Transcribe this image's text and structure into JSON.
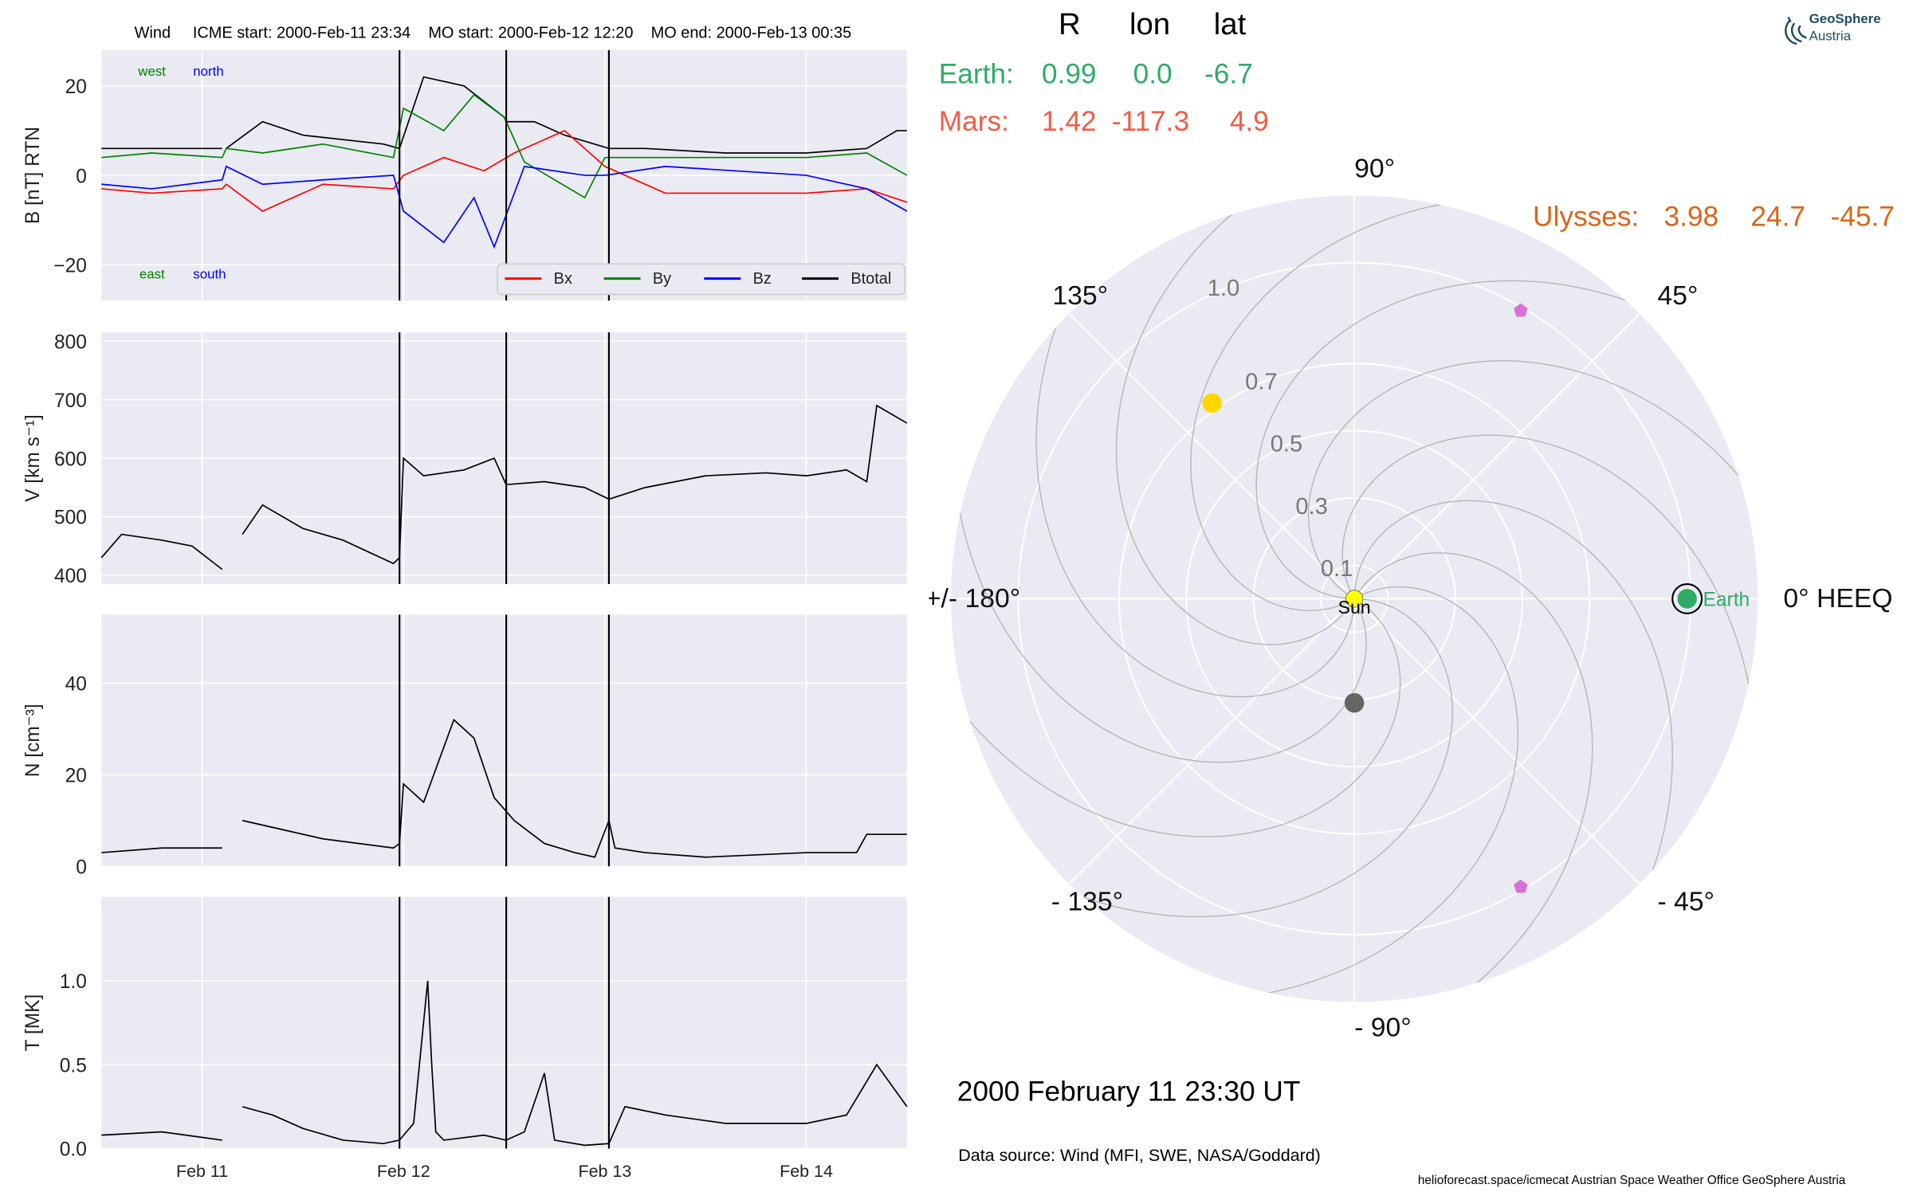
{
  "header": {
    "mission": "Wind",
    "icme_start": "ICME start: 2000-Feb-11 23:34",
    "mo_start": "MO start: 2000-Feb-12 12:20",
    "mo_end": "MO end: 2000-Feb-13 00:35"
  },
  "positions_table": {
    "columns": [
      "R",
      "lon",
      "lat"
    ],
    "rows": [
      {
        "name": "Earth:",
        "values": [
          "0.99",
          "0.0",
          "-6.7"
        ],
        "color": "#2eac66"
      },
      {
        "name": "Mars:",
        "values": [
          "1.42",
          "-117.3",
          "4.9"
        ],
        "color": "#f25c45"
      }
    ],
    "ulysses": {
      "name": "Ulysses:",
      "values": [
        "3.98",
        "24.7",
        "-45.7"
      ],
      "color": "#d9651a"
    }
  },
  "logo": {
    "line1": "GeoSphere",
    "line2": "Austria"
  },
  "footer": {
    "date": "2000 February 11  23:30 UT",
    "data_source": "Data source: Wind (MFI, SWE, NASA/Goddard)",
    "credits": "helioforecast.space/icmecat   Austrian Space Weather Office   GeoSphere Austria"
  },
  "colors": {
    "bx": "#ff0000",
    "by": "#008000",
    "bz": "#0000ff",
    "btotal": "#000000",
    "panel_bg": "#eaeaf2",
    "earth": "#2eac66",
    "mars": "#f25c45",
    "ulysses": "#d9651a"
  },
  "chart_data": [
    {
      "type": "line",
      "ylabel": "B [nT] RTN",
      "ylim": [
        -28,
        28
      ],
      "yticks": [
        -20,
        0,
        20
      ],
      "ytick_labels": [
        "−20",
        "0",
        "20"
      ],
      "xticks": [
        "Feb 11",
        "Feb 12",
        "Feb 13",
        "Feb 14"
      ],
      "xlim_days": [
        10.5,
        14.5
      ],
      "vertical_lines_days": [
        11.98,
        12.51,
        13.02
      ],
      "annotations": {
        "west": "west",
        "north": "north",
        "east": "east",
        "south": "south"
      },
      "legend": [
        "Bx",
        "By",
        "Bz",
        "Btotal"
      ],
      "legend_position": "lower right",
      "series": [
        {
          "name": "Btotal",
          "x": [
            10.5,
            11.1,
            11.12,
            11.1,
            11.12,
            11.3,
            11.5,
            11.9,
            11.98,
            12.1,
            12.3,
            12.5,
            12.51,
            12.65,
            12.8,
            13.02,
            13.2,
            13.6,
            14.0,
            14.3,
            14.45,
            14.5
          ],
          "y": [
            6,
            6,
            null,
            null,
            6,
            12,
            9,
            7,
            6,
            22,
            20,
            13,
            12,
            12,
            9,
            6,
            6,
            5,
            5,
            6,
            10,
            10
          ]
        },
        {
          "name": "Bx",
          "x": [
            10.5,
            10.75,
            11.1,
            11.12,
            11.3,
            11.6,
            11.95,
            12.0,
            12.2,
            12.4,
            12.55,
            12.8,
            13.0,
            13.3,
            14.0,
            14.3,
            14.5
          ],
          "y": [
            -3,
            -4,
            -3,
            -2,
            -8,
            -2,
            -3,
            0,
            4,
            1,
            5,
            10,
            2,
            -4,
            -4,
            -3,
            -6
          ]
        },
        {
          "name": "By",
          "x": [
            10.5,
            10.75,
            11.1,
            11.12,
            11.3,
            11.6,
            11.95,
            12.0,
            12.2,
            12.35,
            12.5,
            12.6,
            12.9,
            13.0,
            13.3,
            14.0,
            14.3,
            14.5
          ],
          "y": [
            4,
            5,
            4,
            6,
            5,
            7,
            4,
            15,
            10,
            18,
            13,
            3,
            -5,
            4,
            4,
            4,
            5,
            0
          ]
        },
        {
          "name": "Bz",
          "x": [
            10.5,
            10.75,
            11.1,
            11.12,
            11.3,
            11.6,
            11.95,
            12.0,
            12.2,
            12.35,
            12.45,
            12.6,
            12.9,
            13.0,
            13.3,
            14.0,
            14.3,
            14.5
          ],
          "y": [
            -2,
            -3,
            -1,
            2,
            -2,
            -1,
            0,
            -8,
            -15,
            -5,
            -16,
            2,
            0,
            0,
            2,
            0,
            -3,
            -8
          ]
        }
      ]
    },
    {
      "type": "line",
      "ylabel": "V [km s⁻¹]",
      "ylim": [
        385,
        815
      ],
      "yticks": [
        400,
        500,
        600,
        700,
        800
      ],
      "xticks": [
        "Feb 11",
        "Feb 12",
        "Feb 13",
        "Feb 14"
      ],
      "xlim_days": [
        10.5,
        14.5
      ],
      "vertical_lines_days": [
        11.98,
        12.51,
        13.02
      ],
      "series": [
        {
          "name": "V",
          "x": [
            10.5,
            10.6,
            10.8,
            10.95,
            11.1,
            11.12,
            11.2,
            11.3,
            11.5,
            11.7,
            11.95,
            11.98,
            12.0,
            12.1,
            12.3,
            12.45,
            12.51,
            12.7,
            12.9,
            13.02,
            13.2,
            13.5,
            13.8,
            14.0,
            14.2,
            14.3,
            14.35,
            14.5
          ],
          "y": [
            430,
            470,
            460,
            450,
            410,
            null,
            470,
            520,
            480,
            460,
            420,
            430,
            600,
            570,
            580,
            600,
            555,
            560,
            550,
            530,
            550,
            570,
            575,
            570,
            580,
            560,
            690,
            660
          ]
        }
      ]
    },
    {
      "type": "line",
      "ylabel": "N [cm⁻³]",
      "ylim": [
        0,
        55
      ],
      "yticks": [
        0,
        20,
        40
      ],
      "xticks": [
        "Feb 11",
        "Feb 12",
        "Feb 13",
        "Feb 14"
      ],
      "xlim_days": [
        10.5,
        14.5
      ],
      "vertical_lines_days": [
        11.98,
        12.51,
        13.02
      ],
      "series": [
        {
          "name": "N",
          "x": [
            10.5,
            10.8,
            11.1,
            11.12,
            11.2,
            11.4,
            11.6,
            11.95,
            11.98,
            12.0,
            12.1,
            12.25,
            12.35,
            12.45,
            12.55,
            12.7,
            12.85,
            12.95,
            13.02,
            13.05,
            13.2,
            13.5,
            14.0,
            14.25,
            14.3,
            14.5
          ],
          "y": [
            3,
            4,
            4,
            null,
            10,
            8,
            6,
            4,
            5,
            18,
            14,
            32,
            28,
            15,
            10,
            5,
            3,
            2,
            10,
            4,
            3,
            2,
            3,
            3,
            7,
            7
          ]
        }
      ]
    },
    {
      "type": "line",
      "ylabel": "T [MK]",
      "ylim": [
        0,
        1.5
      ],
      "yticks": [
        0.0,
        0.5,
        1.0
      ],
      "ytick_labels": [
        "0.0",
        "0.5",
        "1.0"
      ],
      "xticks": [
        "Feb 11",
        "Feb 12",
        "Feb 13",
        "Feb 14"
      ],
      "xlim_days": [
        10.5,
        14.5
      ],
      "vertical_lines_days": [
        11.98,
        12.51,
        13.02
      ],
      "series": [
        {
          "name": "T",
          "x": [
            10.5,
            10.8,
            11.1,
            11.12,
            11.2,
            11.35,
            11.5,
            11.7,
            11.9,
            11.98,
            12.05,
            12.12,
            12.14,
            12.16,
            12.2,
            12.4,
            12.51,
            12.6,
            12.7,
            12.75,
            12.9,
            13.02,
            13.1,
            13.3,
            13.6,
            14.0,
            14.2,
            14.35,
            14.5
          ],
          "y": [
            0.08,
            0.1,
            0.05,
            null,
            0.25,
            0.2,
            0.12,
            0.05,
            0.03,
            0.05,
            0.15,
            1.0,
            0.5,
            0.1,
            0.05,
            0.08,
            0.05,
            0.1,
            0.45,
            0.05,
            0.02,
            0.03,
            0.25,
            0.2,
            0.15,
            0.15,
            0.2,
            0.5,
            0.25
          ]
        }
      ]
    },
    {
      "type": "scatter",
      "projection": "polar",
      "theta_tick_labels": [
        "0° HEEQ",
        "45°",
        "90°",
        "135°",
        "+/- 180°",
        "- 135°",
        "- 90°",
        "- 45°"
      ],
      "r_tick_labels": [
        "0.1",
        "0.3",
        "0.5",
        "0.7",
        "1.0"
      ],
      "r_ticks": [
        0.1,
        0.3,
        0.5,
        0.7,
        1.0
      ],
      "rlim": [
        0,
        1.2
      ],
      "objects": [
        {
          "name": "Sun",
          "r": 0.0,
          "lon": 0.0,
          "color": "#ffff00",
          "label": "Sun"
        },
        {
          "name": "Earth",
          "r": 0.99,
          "lon": 0.0,
          "color": "#2eac66",
          "label": "Earth"
        },
        {
          "name": "Mars",
          "r": 1.42,
          "lon": -117.3,
          "color": "#f25c45"
        },
        {
          "name": "Ulysses",
          "r": 3.98,
          "lon": 24.7,
          "color": "#d9651a"
        },
        {
          "name": "Mercury",
          "r": 0.31,
          "lon": -90,
          "color": "#666666"
        },
        {
          "name": "Venus",
          "r": 0.72,
          "lon": 126,
          "color": "#ffd700"
        },
        {
          "name": "STEREO-L5",
          "r": 0.99,
          "lon": 60,
          "color": "#da70d6"
        },
        {
          "name": "STEREO-L4",
          "r": 0.99,
          "lon": -60,
          "color": "#da70d6"
        }
      ]
    }
  ]
}
